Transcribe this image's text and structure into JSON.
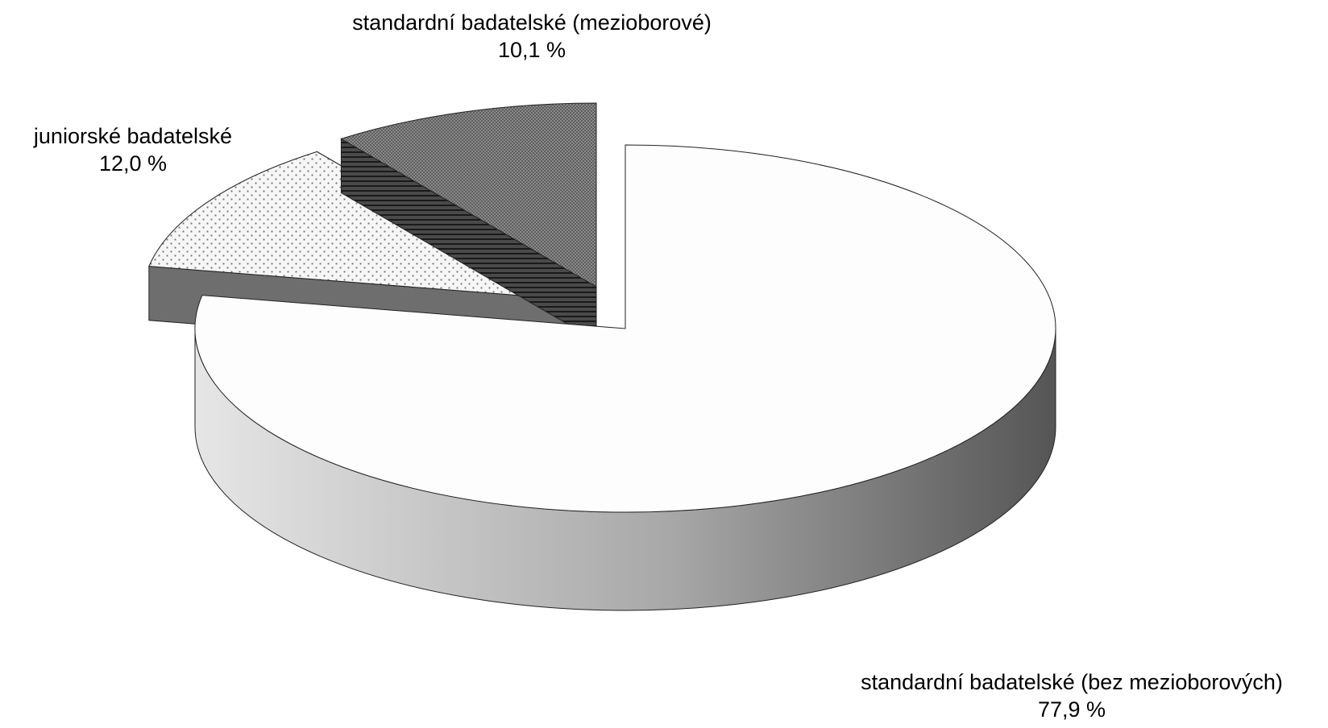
{
  "chart_data": {
    "type": "pie",
    "style": "3d-exploded",
    "slices": [
      {
        "label": "standardní badatelské (bez mezioborových)",
        "value": 77.9,
        "value_text": "77,9 %",
        "fill": "#fdfdfd",
        "pattern": "none",
        "side_gradient": [
          "#e4e4e4",
          "#5c5c5c"
        ]
      },
      {
        "label": "juniorské badatelské",
        "value": 12.0,
        "value_text": "12,0 %",
        "fill": "#f4f4f4",
        "pattern": "dots",
        "side_color": "#707070"
      },
      {
        "label": "standardní badatelské (mezioborové)",
        "value": 10.1,
        "value_text": "10,1 %",
        "fill": "#8c8c8c",
        "pattern": "crosshatch",
        "side_color": "#3a3a3a"
      }
    ],
    "legend": "none",
    "title": "",
    "outline_color": "#222222"
  }
}
